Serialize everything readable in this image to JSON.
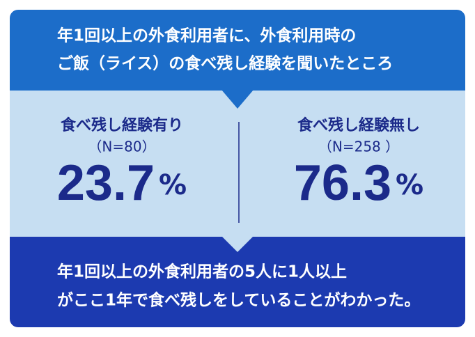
{
  "header": {
    "lines": [
      "年1回以上の外食利用者に、外食利用時の",
      "ご飯（ライス）の食べ残し経験を聞いたところ"
    ]
  },
  "stats": [
    {
      "label": "食べ残し経験有り",
      "n": "（N=80）",
      "value": "23.7",
      "unit": "%"
    },
    {
      "label": "食べ残し経験無し",
      "n": "（N=258 ）",
      "value": "76.3",
      "unit": "%"
    }
  ],
  "footer": {
    "lines": [
      "年1回以上の外食利用者の5人に1人以上",
      "がここ1年で食べ残しをしていることがわかった。"
    ]
  }
}
